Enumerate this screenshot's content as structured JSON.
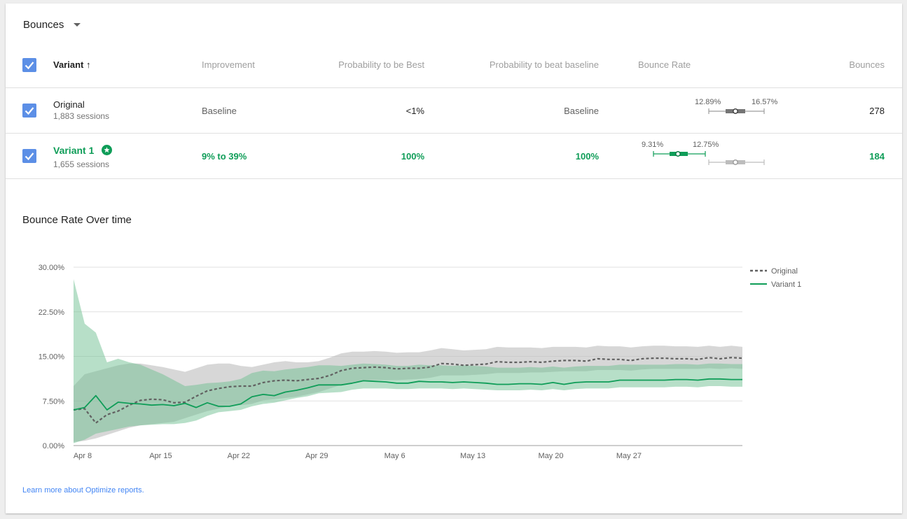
{
  "metric_selector": {
    "label": "Bounces"
  },
  "table": {
    "headers": {
      "variant": "Variant",
      "sort_arrow": "↑",
      "improvement": "Improvement",
      "prob_best": "Probability to be Best",
      "prob_beat": "Probability to beat baseline",
      "bounce_rate": "Bounce Rate",
      "bounces": "Bounces"
    },
    "rows": [
      {
        "name": "Original",
        "sessions": "1,883 sessions",
        "improvement": "Baseline",
        "prob_best": "<1%",
        "prob_beat": "Baseline",
        "ci_low_label": "12.89%",
        "ci_high_label": "16.57%",
        "bounces": "278"
      },
      {
        "name": "Variant 1",
        "sessions": "1,655 sessions",
        "improvement": "9% to 39%",
        "prob_best": "100%",
        "prob_beat": "100%",
        "ci_low_label": "9.31%",
        "ci_high_label": "12.75%",
        "bounces": "184",
        "leader_icon": "star-badge-icon"
      }
    ]
  },
  "chart_title": "Bounce Rate Over time",
  "learn_more": "Learn more about Optimize reports.",
  "colors": {
    "accent_green": "#0f9d58",
    "original_gray": "#616161",
    "checkbox_blue": "#5c8fe6",
    "link_blue": "#4285f4"
  },
  "chart_data": {
    "type": "line",
    "title": "Bounce Rate Over time",
    "xlabel": "",
    "ylabel": "",
    "ylim": [
      0,
      30
    ],
    "y_ticks": [
      "0.00%",
      "7.50%",
      "15.00%",
      "22.50%",
      "30.00%"
    ],
    "y_tick_values": [
      0,
      7.5,
      15,
      22.5,
      30
    ],
    "x_tick_labels": [
      "Apr 8",
      "Apr 15",
      "Apr 22",
      "Apr 29",
      "May 6",
      "May 13",
      "May 20",
      "May 27"
    ],
    "x_tick_days": [
      0,
      7,
      14,
      21,
      28,
      35,
      42,
      49
    ],
    "x_range": [
      0,
      60
    ],
    "legend_position": "top-right",
    "series": [
      {
        "name": "Original",
        "style": "dashed",
        "color": "#616161",
        "band_color": "#bdbdbd",
        "values": [
          6.0,
          6.2,
          3.8,
          5.2,
          5.8,
          6.8,
          7.6,
          7.8,
          7.7,
          7.2,
          7.3,
          8.3,
          9.2,
          9.6,
          9.9,
          10.0,
          10.0,
          10.6,
          10.9,
          11.0,
          10.9,
          11.1,
          11.3,
          11.8,
          12.6,
          13.0,
          13.1,
          13.2,
          13.1,
          12.9,
          13.0,
          13.0,
          13.2,
          13.8,
          13.7,
          13.5,
          13.6,
          13.7,
          14.1,
          14.0,
          14.0,
          14.1,
          14.0,
          14.2,
          14.3,
          14.3,
          14.2,
          14.6,
          14.5,
          14.5,
          14.3,
          14.6,
          14.7,
          14.7,
          14.6,
          14.6,
          14.5,
          14.8,
          14.6,
          14.8,
          14.7
        ],
        "lower": [
          0.6,
          0.8,
          1.2,
          1.8,
          2.4,
          3.0,
          3.4,
          3.6,
          3.8,
          4.0,
          4.6,
          5.2,
          5.8,
          6.2,
          6.6,
          6.8,
          7.0,
          7.6,
          7.8,
          8.0,
          8.2,
          8.6,
          9.0,
          9.6,
          10.2,
          10.6,
          10.8,
          11.0,
          11.0,
          11.0,
          11.1,
          11.2,
          11.4,
          11.8,
          11.8,
          11.8,
          11.9,
          12.0,
          12.2,
          12.2,
          12.2,
          12.3,
          12.3,
          12.4,
          12.5,
          12.5,
          12.5,
          12.7,
          12.7,
          12.7,
          12.6,
          12.8,
          12.9,
          12.9,
          12.9,
          12.9,
          12.9,
          13.0,
          12.9,
          13.0,
          12.9
        ],
        "upper": [
          10.0,
          12.0,
          12.5,
          13.0,
          13.5,
          13.8,
          13.8,
          13.5,
          13.2,
          12.8,
          12.4,
          13.0,
          13.6,
          13.8,
          13.8,
          13.4,
          13.2,
          13.6,
          14.0,
          14.2,
          14.0,
          14.0,
          14.2,
          14.8,
          15.5,
          15.8,
          15.8,
          15.9,
          15.8,
          15.6,
          15.7,
          15.7,
          16.0,
          16.4,
          16.2,
          16.0,
          16.1,
          16.2,
          16.6,
          16.5,
          16.5,
          16.5,
          16.4,
          16.6,
          16.6,
          16.6,
          16.5,
          16.8,
          16.7,
          16.7,
          16.5,
          16.7,
          16.8,
          16.8,
          16.7,
          16.7,
          16.6,
          16.8,
          16.6,
          16.8,
          16.6
        ]
      },
      {
        "name": "Variant 1",
        "style": "solid",
        "color": "#0f9d58",
        "band_color": "#6fbf92",
        "values": [
          6.0,
          6.4,
          8.4,
          6.0,
          7.3,
          7.1,
          7.0,
          6.8,
          6.9,
          6.7,
          7.1,
          6.4,
          7.2,
          6.6,
          6.6,
          7.0,
          8.2,
          8.6,
          8.4,
          9.0,
          9.3,
          9.7,
          10.2,
          10.2,
          10.2,
          10.5,
          10.9,
          10.8,
          10.7,
          10.5,
          10.5,
          10.8,
          10.7,
          10.7,
          10.6,
          10.7,
          10.6,
          10.5,
          10.3,
          10.3,
          10.4,
          10.4,
          10.3,
          10.6,
          10.3,
          10.6,
          10.7,
          10.7,
          10.7,
          11.0,
          11.0,
          11.0,
          11.0,
          11.0,
          11.1,
          11.1,
          11.0,
          11.2,
          11.2,
          11.1,
          11.1
        ],
        "lower": [
          0.4,
          1.0,
          2.0,
          2.4,
          2.8,
          3.2,
          3.4,
          3.5,
          3.6,
          3.6,
          3.8,
          4.2,
          5.0,
          5.6,
          5.8,
          6.0,
          6.6,
          7.0,
          7.2,
          7.6,
          8.0,
          8.3,
          8.8,
          8.9,
          9.0,
          9.4,
          9.6,
          9.6,
          9.6,
          9.5,
          9.5,
          9.6,
          9.6,
          9.6,
          9.5,
          9.6,
          9.5,
          9.4,
          9.3,
          9.3,
          9.3,
          9.4,
          9.3,
          9.5,
          9.3,
          9.5,
          9.6,
          9.6,
          9.6,
          9.8,
          9.8,
          9.8,
          9.8,
          9.8,
          9.9,
          9.9,
          9.8,
          10.0,
          10.0,
          9.9,
          9.9
        ],
        "upper": [
          28.0,
          20.5,
          19.0,
          14.0,
          14.6,
          14.0,
          13.6,
          12.8,
          12.0,
          11.0,
          10.0,
          10.2,
          10.5,
          10.6,
          10.8,
          11.2,
          12.2,
          12.6,
          12.5,
          12.8,
          13.0,
          13.2,
          13.5,
          13.5,
          13.4,
          13.6,
          13.8,
          13.7,
          13.6,
          13.4,
          13.4,
          13.6,
          13.5,
          13.5,
          13.4,
          13.5,
          13.4,
          13.3,
          13.1,
          13.1,
          13.1,
          13.2,
          13.1,
          13.3,
          13.1,
          13.3,
          13.4,
          13.4,
          13.4,
          13.6,
          13.6,
          13.6,
          13.6,
          13.6,
          13.7,
          13.7,
          13.6,
          13.8,
          13.8,
          13.7,
          13.7
        ]
      }
    ]
  }
}
